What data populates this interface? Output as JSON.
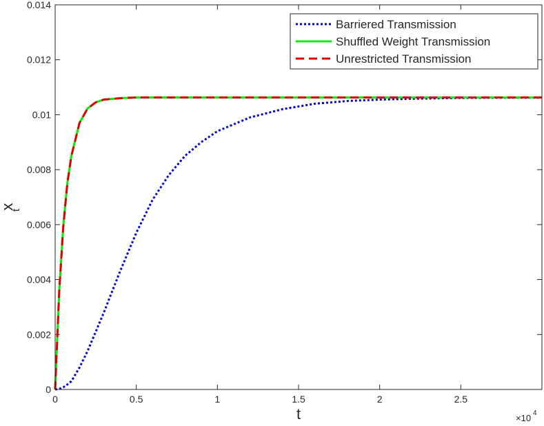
{
  "chart_data": {
    "type": "line",
    "xlabel": "t",
    "ylabel": {
      "text": "x",
      "subscript": "t"
    },
    "x_offset_label": {
      "base": "×10",
      "exponent": "4"
    },
    "x": [
      0,
      250,
      500,
      750,
      1000,
      1500,
      2000,
      2500,
      3000,
      4000,
      5000,
      6000,
      7000,
      8000,
      9000,
      10000,
      12000,
      14000,
      16000,
      18000,
      20000,
      22000,
      25000,
      28000,
      30000
    ],
    "series": [
      {
        "name": "Barriered Transmission",
        "color": "#0000d0",
        "linestyle": "dotted",
        "values": [
          0,
          2e-05,
          8e-05,
          0.00018,
          0.0003,
          0.0008,
          0.0014,
          0.0021,
          0.0028,
          0.0043,
          0.0057,
          0.0069,
          0.0078,
          0.0085,
          0.009,
          0.0094,
          0.0099,
          0.0102,
          0.0104,
          0.0105,
          0.01055,
          0.01058,
          0.01061,
          0.01062,
          0.01062
        ]
      },
      {
        "name": "Shuffled Weight Transmission",
        "color": "#00ee00",
        "linestyle": "solid",
        "values": [
          0,
          0.00356,
          0.00593,
          0.0075,
          0.0085,
          0.0097,
          0.01023,
          0.01045,
          0.01055,
          0.0106,
          0.01063,
          0.01063,
          0.01063,
          0.01063,
          0.01063,
          0.01063,
          0.01063,
          0.01063,
          0.01063,
          0.01063,
          0.01063,
          0.01063,
          0.01063,
          0.01063,
          0.01063
        ]
      },
      {
        "name": "Unrestricted Transmission",
        "color": "#e00000",
        "linestyle": "dashed",
        "values": [
          0,
          0.00356,
          0.00593,
          0.0075,
          0.0085,
          0.0097,
          0.01023,
          0.01045,
          0.01055,
          0.0106,
          0.01063,
          0.01063,
          0.01063,
          0.01063,
          0.01063,
          0.01063,
          0.01063,
          0.01063,
          0.01063,
          0.01063,
          0.01063,
          0.01063,
          0.01063,
          0.01063,
          0.01063
        ]
      }
    ],
    "xlim": [
      0,
      30000
    ],
    "xticks": [
      0,
      {
        "value": 5000,
        "label": "0.5"
      },
      {
        "value": 10000,
        "label": "1"
      },
      {
        "value": 15000,
        "label": "1.5"
      },
      {
        "value": 20000,
        "label": "2"
      },
      {
        "value": 25000,
        "label": "2.5"
      }
    ],
    "ylim": [
      0,
      0.014
    ],
    "yticks": [
      0,
      0.002,
      0.004,
      0.006,
      0.008,
      0.01,
      0.012,
      0.014
    ],
    "grid": false,
    "legend": "top-right"
  }
}
